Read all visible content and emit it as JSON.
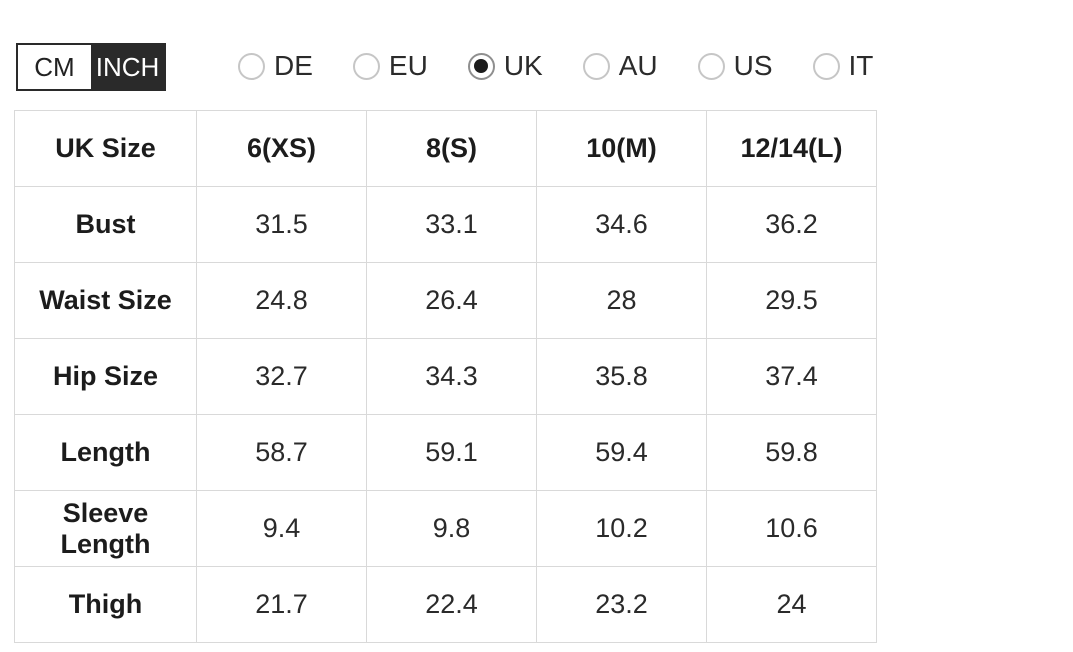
{
  "unit_toggle": {
    "options": [
      {
        "label": "CM",
        "active": false
      },
      {
        "label": "INCH",
        "active": true
      }
    ]
  },
  "region_options": [
    {
      "label": "DE",
      "selected": false
    },
    {
      "label": "EU",
      "selected": false
    },
    {
      "label": "UK",
      "selected": true
    },
    {
      "label": "AU",
      "selected": false
    },
    {
      "label": "US",
      "selected": false
    },
    {
      "label": "IT",
      "selected": false
    }
  ],
  "size_table": {
    "header": [
      "UK Size",
      "6(XS)",
      "8(S)",
      "10(M)",
      "12/14(L)"
    ],
    "rows": [
      {
        "label": "Bust",
        "values": [
          "31.5",
          "33.1",
          "34.6",
          "36.2"
        ]
      },
      {
        "label": "Waist Size",
        "values": [
          "24.8",
          "26.4",
          "28",
          "29.5"
        ]
      },
      {
        "label": "Hip Size",
        "values": [
          "32.7",
          "34.3",
          "35.8",
          "37.4"
        ]
      },
      {
        "label": "Length",
        "values": [
          "58.7",
          "59.1",
          "59.4",
          "59.8"
        ]
      },
      {
        "label": "Sleeve Length",
        "values": [
          "9.4",
          "9.8",
          "10.2",
          "10.6"
        ]
      },
      {
        "label": "Thigh",
        "values": [
          "21.7",
          "22.4",
          "23.2",
          "24"
        ]
      }
    ]
  },
  "colors": {
    "accent_dark": "#2a2a2a",
    "table_border": "#d9d9d9",
    "radio_border": "#c6c6c6",
    "text": "#1f1f1f"
  }
}
